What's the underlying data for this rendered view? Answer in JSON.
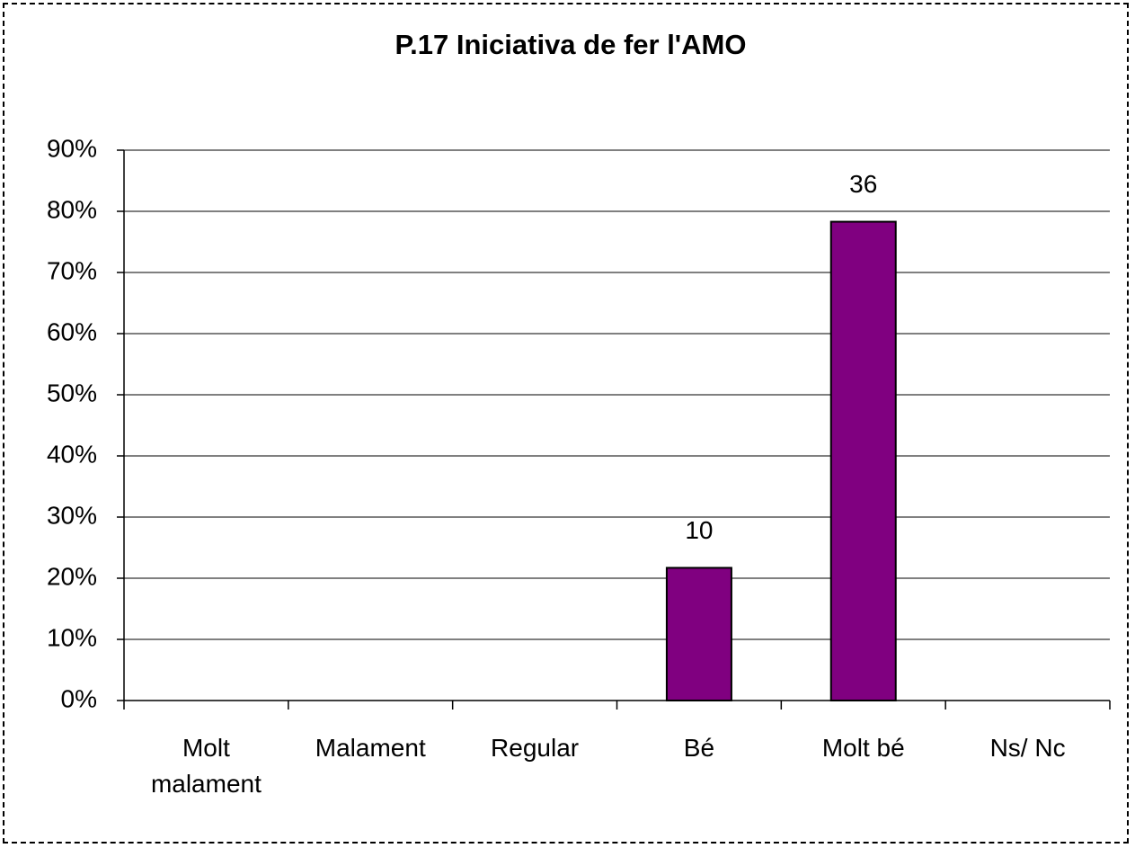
{
  "chart_data": {
    "type": "bar",
    "title": "P.17 Iniciativa de fer l'AMO",
    "categories": [
      "Molt malament",
      "Malament",
      "Regular",
      "Bé",
      "Molt bé",
      "Ns/ Nc"
    ],
    "values": [
      0,
      0,
      0,
      21.7,
      78.3,
      0
    ],
    "counts": [
      null,
      null,
      null,
      10,
      36,
      null
    ],
    "color": "#800080",
    "ylim": [
      0,
      90
    ],
    "yticks": [
      {
        "value": 0,
        "label": "0%"
      },
      {
        "value": 10,
        "label": "10%"
      },
      {
        "value": 20,
        "label": "20%"
      },
      {
        "value": 30,
        "label": "30%"
      },
      {
        "value": 40,
        "label": "40%"
      },
      {
        "value": 50,
        "label": "50%"
      },
      {
        "value": 60,
        "label": "60%"
      },
      {
        "value": 70,
        "label": "70%"
      },
      {
        "value": 80,
        "label": "80%"
      },
      {
        "value": 90,
        "label": "90%"
      }
    ],
    "grid": true
  }
}
